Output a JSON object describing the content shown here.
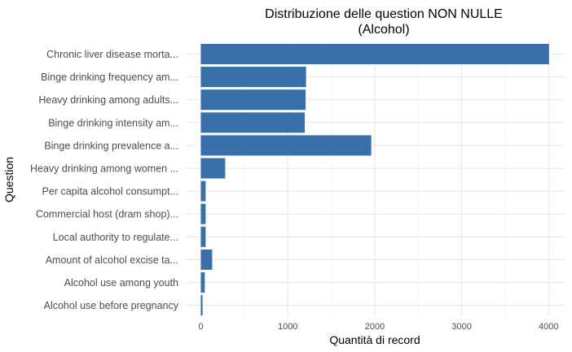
{
  "chart_data": {
    "type": "bar",
    "orientation": "horizontal",
    "title": "Distribuzione delle question NON NULLE",
    "subtitle": "(Alcohol)",
    "xlabel": "Quantità di record",
    "ylabel": "Question",
    "xlim": [
      0,
      4100
    ],
    "xticks": [
      0,
      1000,
      2000,
      3000,
      4000
    ],
    "grid": true,
    "legend": "none",
    "bar_color": "#3a70aa",
    "categories": [
      "Chronic liver disease morta...",
      "Binge drinking frequency am...",
      "Heavy drinking among adults...",
      "Binge drinking intensity am...",
      "Binge drinking prevalence a...",
      "Heavy drinking among women ...",
      "Per capita alcohol consumpt...",
      "Commercial host (dram shop)...",
      "Local authority to regulate...",
      "Amount of alcohol excise ta...",
      "Alcohol use among youth",
      "Alcohol use before pregnancy"
    ],
    "values": [
      4005,
      1210,
      1205,
      1195,
      1960,
      280,
      55,
      55,
      55,
      130,
      45,
      20
    ]
  }
}
